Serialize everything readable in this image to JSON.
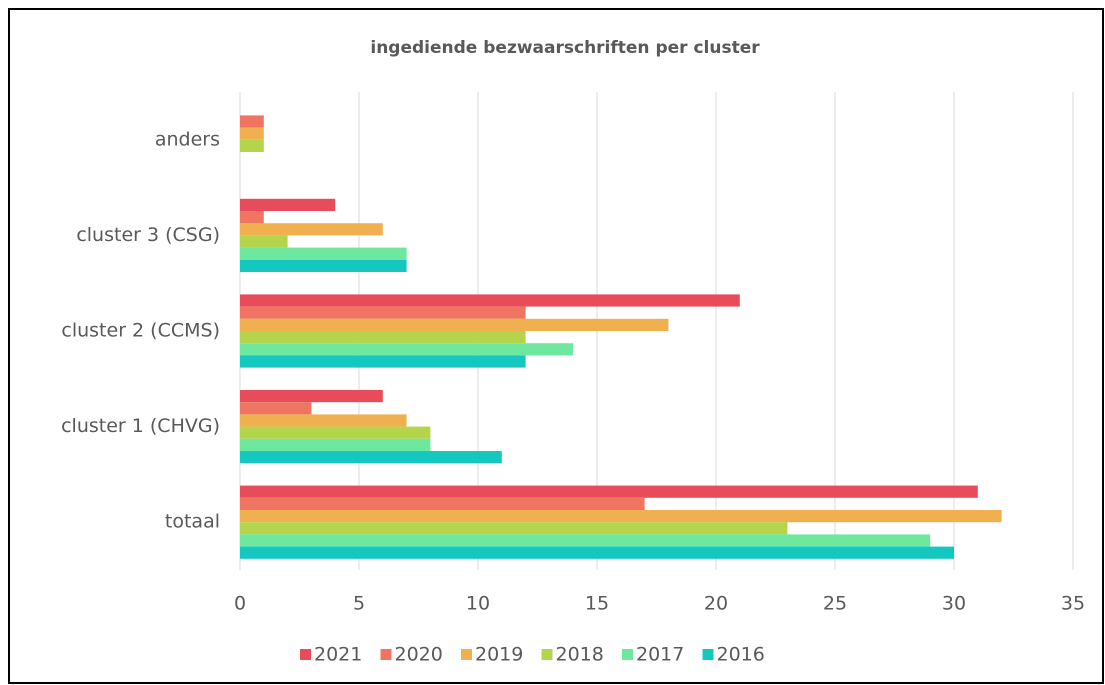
{
  "chart_data": {
    "type": "hbar",
    "title": "ingediende bezwaarschriften per cluster",
    "categories": [
      "anders",
      "cluster 3 (CSG)",
      "cluster 2 (CCMS)",
      "cluster 1 (CHVG)",
      "totaal"
    ],
    "series": [
      {
        "name": "2021",
        "color": "#e84c5a",
        "values": [
          0,
          4,
          21,
          6,
          31
        ]
      },
      {
        "name": "2020",
        "color": "#ef7562",
        "values": [
          1,
          1,
          12,
          3,
          17
        ]
      },
      {
        "name": "2019",
        "color": "#f0b050",
        "values": [
          1,
          6,
          18,
          7,
          32
        ]
      },
      {
        "name": "2018",
        "color": "#b4d44c",
        "values": [
          1,
          2,
          12,
          8,
          23
        ]
      },
      {
        "name": "2017",
        "color": "#6ee89e",
        "values": [
          0,
          7,
          14,
          8,
          29
        ]
      },
      {
        "name": "2016",
        "color": "#14c8c0",
        "values": [
          0,
          7,
          12,
          11,
          30
        ]
      }
    ],
    "xlim": [
      0,
      35
    ],
    "xticks": [
      0,
      5,
      10,
      15,
      20,
      25,
      30,
      35
    ],
    "grid": true,
    "legend": "bottom"
  }
}
